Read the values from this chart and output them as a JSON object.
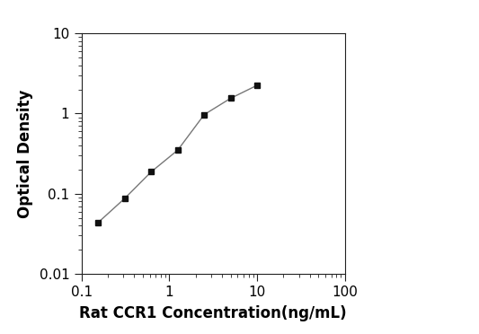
{
  "x_values": [
    0.156,
    0.313,
    0.625,
    1.25,
    2.5,
    5.0,
    10.0
  ],
  "y_values": [
    0.044,
    0.088,
    0.188,
    0.35,
    0.97,
    1.55,
    2.25
  ],
  "xlabel": "Rat CCR1 Concentration(ng/mL)",
  "ylabel": "Optical Density",
  "xlim": [
    0.1,
    100
  ],
  "ylim": [
    0.01,
    10
  ],
  "line_color": "#777777",
  "marker_color": "#111111",
  "marker": "s",
  "marker_size": 5,
  "line_width": 1.0,
  "xlabel_fontsize": 12,
  "ylabel_fontsize": 12,
  "tick_fontsize": 11,
  "bg_color": "#ffffff",
  "spine_color": "#222222"
}
